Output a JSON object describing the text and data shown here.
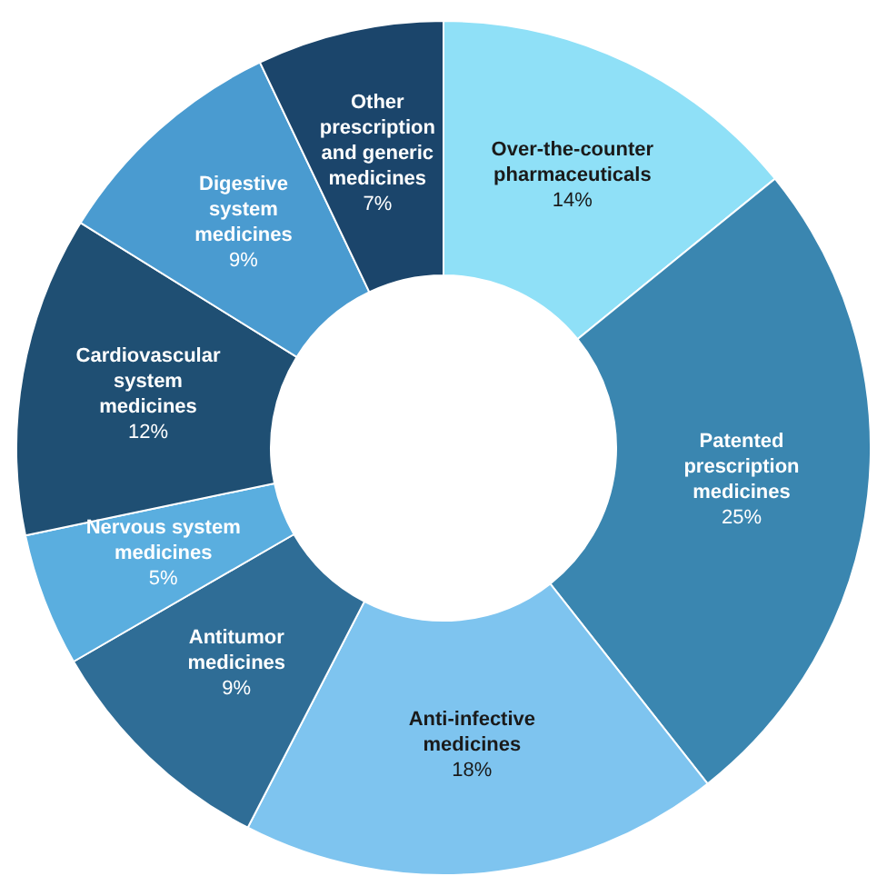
{
  "chart_data": {
    "type": "donut",
    "categories": [
      "Over-the-counter pharmaceuticals",
      "Patented prescription medicines",
      "Anti-infective medicines",
      "Antitumor medicines",
      "Nervous system medicines",
      "Cardiovascular system medicines",
      "Digestive system medicines",
      "Other prescription and generic medicines"
    ],
    "values": [
      14,
      25,
      18,
      9,
      5,
      12,
      9,
      7
    ],
    "value_labels": [
      "14%",
      "25%",
      "18%",
      "9%",
      "5%",
      "12%",
      "9%",
      "7%"
    ],
    "colors": [
      "#8fe0f7",
      "#3a86b0",
      "#7ec4ef",
      "#2f6d96",
      "#5aaedf",
      "#1f4f73",
      "#4a9bd0",
      "#1b456b"
    ],
    "legend": false
  }
}
